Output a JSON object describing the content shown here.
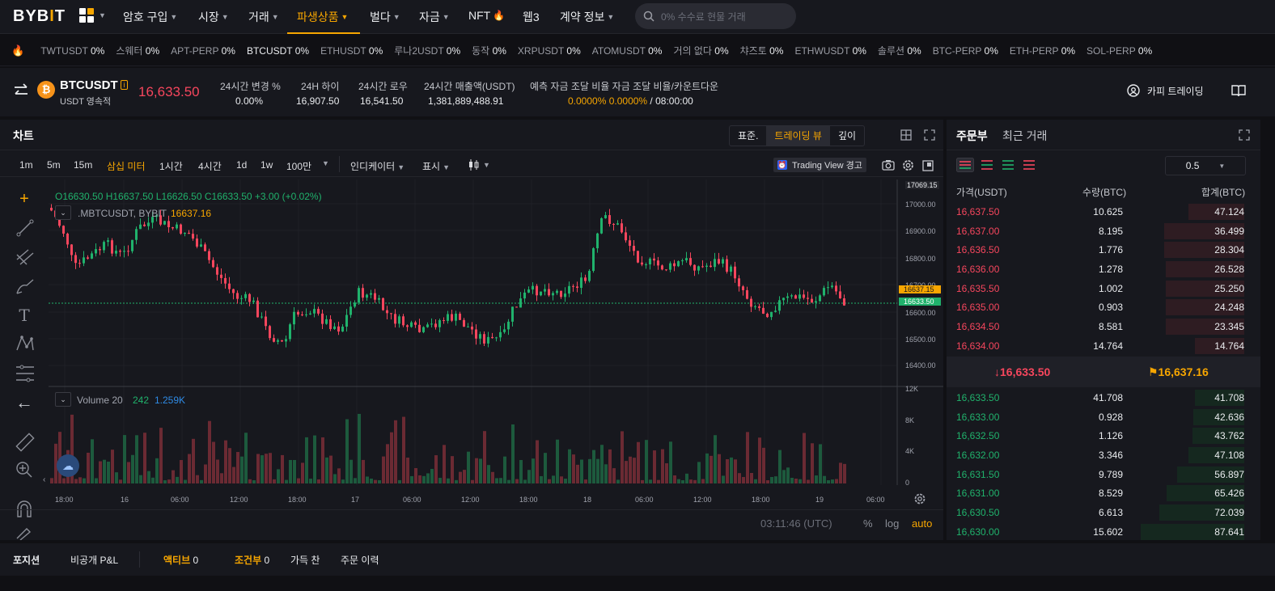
{
  "nav": {
    "logo": "BYB",
    "logo_bar": "I",
    "logo_end": "T",
    "items": [
      {
        "label": "암호 구입",
        "caret": "▼"
      },
      {
        "label": "시장",
        "caret": "▼"
      },
      {
        "label": "거래",
        "caret": "▼"
      },
      {
        "label": "파생상품",
        "caret": "▼"
      },
      {
        "label": "벌다",
        "caret": "▼"
      },
      {
        "label": "자금",
        "caret": "▼"
      },
      {
        "label": "NFT",
        "caret": "🔥"
      },
      {
        "label": "웹3",
        "caret": ""
      },
      {
        "label": "계약 정보",
        "caret": "▼"
      }
    ],
    "search_placeholder": "0% 수수료 현물 거래"
  },
  "ticker": [
    {
      "sym": "TWTUSDT",
      "pct": "0%"
    },
    {
      "sym": "스웨터",
      "pct": "0%"
    },
    {
      "sym": "APT-PERP",
      "pct": "0%"
    },
    {
      "sym": "BTCUSDT",
      "pct": "0%"
    },
    {
      "sym": "ETHUSDT",
      "pct": "0%"
    },
    {
      "sym": "루나2USDT",
      "pct": "0%"
    },
    {
      "sym": "동작",
      "pct": "0%"
    },
    {
      "sym": "XRPUSDT",
      "pct": "0%"
    },
    {
      "sym": "ATOMUSDT",
      "pct": "0%"
    },
    {
      "sym": "거의 없다",
      "pct": "0%"
    },
    {
      "sym": "챠즈토",
      "pct": "0%"
    },
    {
      "sym": "ETHWUSDT",
      "pct": "0%"
    },
    {
      "sym": "솔루션",
      "pct": "0%"
    },
    {
      "sym": "BTC-PERP",
      "pct": "0%"
    },
    {
      "sym": "ETH-PERP",
      "pct": "0%"
    },
    {
      "sym": "SOL-PERP",
      "pct": "0%"
    }
  ],
  "info": {
    "symbol": "BTCUSDT",
    "subtitle": "USDT 영속적",
    "last_price": "16,633.50",
    "stats": [
      {
        "label": "24시간 변경 %",
        "value": "0.00%"
      },
      {
        "label": "24H 하이",
        "value": "16,907.50"
      },
      {
        "label": "24시간 로우",
        "value": "16,541.50"
      },
      {
        "label": "24시간 매출액(USDT)",
        "value": "1,381,889,488.91"
      }
    ],
    "funding_label": "예측  자금 조달  비율 자금  조달 비율/카운트다운",
    "funding_value": "0.0000% 0.0000%",
    "countdown": " / 08:00:00",
    "copy_trading": "카피 트레이딩"
  },
  "chart": {
    "title": "차트",
    "views": [
      "표준.",
      "트레이딩 뷰",
      "깊이"
    ],
    "active_view": "트레이딩 뷰",
    "timeframes": [
      "1m",
      "5m",
      "15m",
      "삼십 미터",
      "1시간",
      "4시간",
      "1d",
      "1w",
      "100만"
    ],
    "active_timeframe": "삼십 미터",
    "indicators_label": "인디케이터",
    "display_label": "표시",
    "tv_warning": "Trading View 경고",
    "ohlc": "O16630.50  H16637.50  L16626.50  C16633.50  +3.00 (+0.02%)",
    "mark_label": ".MBTCUSDT, BYBIT",
    "mark_value": "16637.16",
    "volume_label": "Volume 20",
    "volume_v1": "242",
    "volume_v2": "1.259K",
    "y_ticks": [
      "17069.15",
      "17000.00",
      "16900.00",
      "16800.00",
      "16700.00",
      "16600.00",
      "16500.00",
      "16400.00"
    ],
    "price_tag_mark": "16637.15",
    "price_tag_last": "16633.50",
    "vol_ticks": [
      "12K",
      "8K",
      "4K",
      "0"
    ],
    "x_ticks": [
      "18:00",
      "16",
      "06:00",
      "12:00",
      "18:00",
      "17",
      "06:00",
      "12:00",
      "18:00",
      "18",
      "06:00",
      "12:00",
      "18:00",
      "19",
      "06:00"
    ],
    "time": "03:11:46 (UTC)",
    "pct": "%",
    "log": "log",
    "auto": "auto"
  },
  "orderbook": {
    "tabs": [
      "주문부",
      "최근 거래"
    ],
    "precision": "0.5",
    "headers": [
      "가격(USDT)",
      "수량(BTC)",
      "합계(BTC)"
    ],
    "asks": [
      {
        "price": "16,637.50",
        "qty": "10.625",
        "total": "47.124",
        "depth": 0.54
      },
      {
        "price": "16,637.00",
        "qty": "8.195",
        "total": "36.499",
        "depth": 0.77
      },
      {
        "price": "16,636.50",
        "qty": "1.776",
        "total": "28.304",
        "depth": 0.77
      },
      {
        "price": "16,636.00",
        "qty": "1.278",
        "total": "26.528",
        "depth": 0.76
      },
      {
        "price": "16,635.50",
        "qty": "1.002",
        "total": "25.250",
        "depth": 0.76
      },
      {
        "price": "16,635.00",
        "qty": "0.903",
        "total": "24.248",
        "depth": 0.76
      },
      {
        "price": "16,634.50",
        "qty": "8.581",
        "total": "23.345",
        "depth": 0.76
      },
      {
        "price": "16,634.00",
        "qty": "14.764",
        "total": "14.764",
        "depth": 0.48
      }
    ],
    "mid_last": "↓16,633.50",
    "mid_mark": "⚑16,637.16",
    "bids": [
      {
        "price": "16,633.50",
        "qty": "41.708",
        "total": "41.708",
        "depth": 0.48
      },
      {
        "price": "16,633.00",
        "qty": "0.928",
        "total": "42.636",
        "depth": 0.49
      },
      {
        "price": "16,632.50",
        "qty": "1.126",
        "total": "43.762",
        "depth": 0.5
      },
      {
        "price": "16,632.00",
        "qty": "3.346",
        "total": "47.108",
        "depth": 0.54
      },
      {
        "price": "16,631.50",
        "qty": "9.789",
        "total": "56.897",
        "depth": 0.65
      },
      {
        "price": "16,631.00",
        "qty": "8.529",
        "total": "65.426",
        "depth": 0.75
      },
      {
        "price": "16,630.50",
        "qty": "6.613",
        "total": "72.039",
        "depth": 0.82
      },
      {
        "price": "16,630.00",
        "qty": "15.602",
        "total": "87.641",
        "depth": 1.0
      }
    ]
  },
  "bottom": {
    "tabs": [
      {
        "label": "포지션",
        "count": ""
      },
      {
        "label": "비공개 P&L",
        "count": ""
      },
      {
        "label": "액티브",
        "count": "0"
      },
      {
        "label": "조건부",
        "count": "0"
      },
      {
        "label": "가득 찬",
        "count": ""
      },
      {
        "label": "주문 이력",
        "count": ""
      }
    ]
  },
  "colors": {
    "up": "#20b26c",
    "down": "#f6465d",
    "accent": "#f7a600"
  }
}
